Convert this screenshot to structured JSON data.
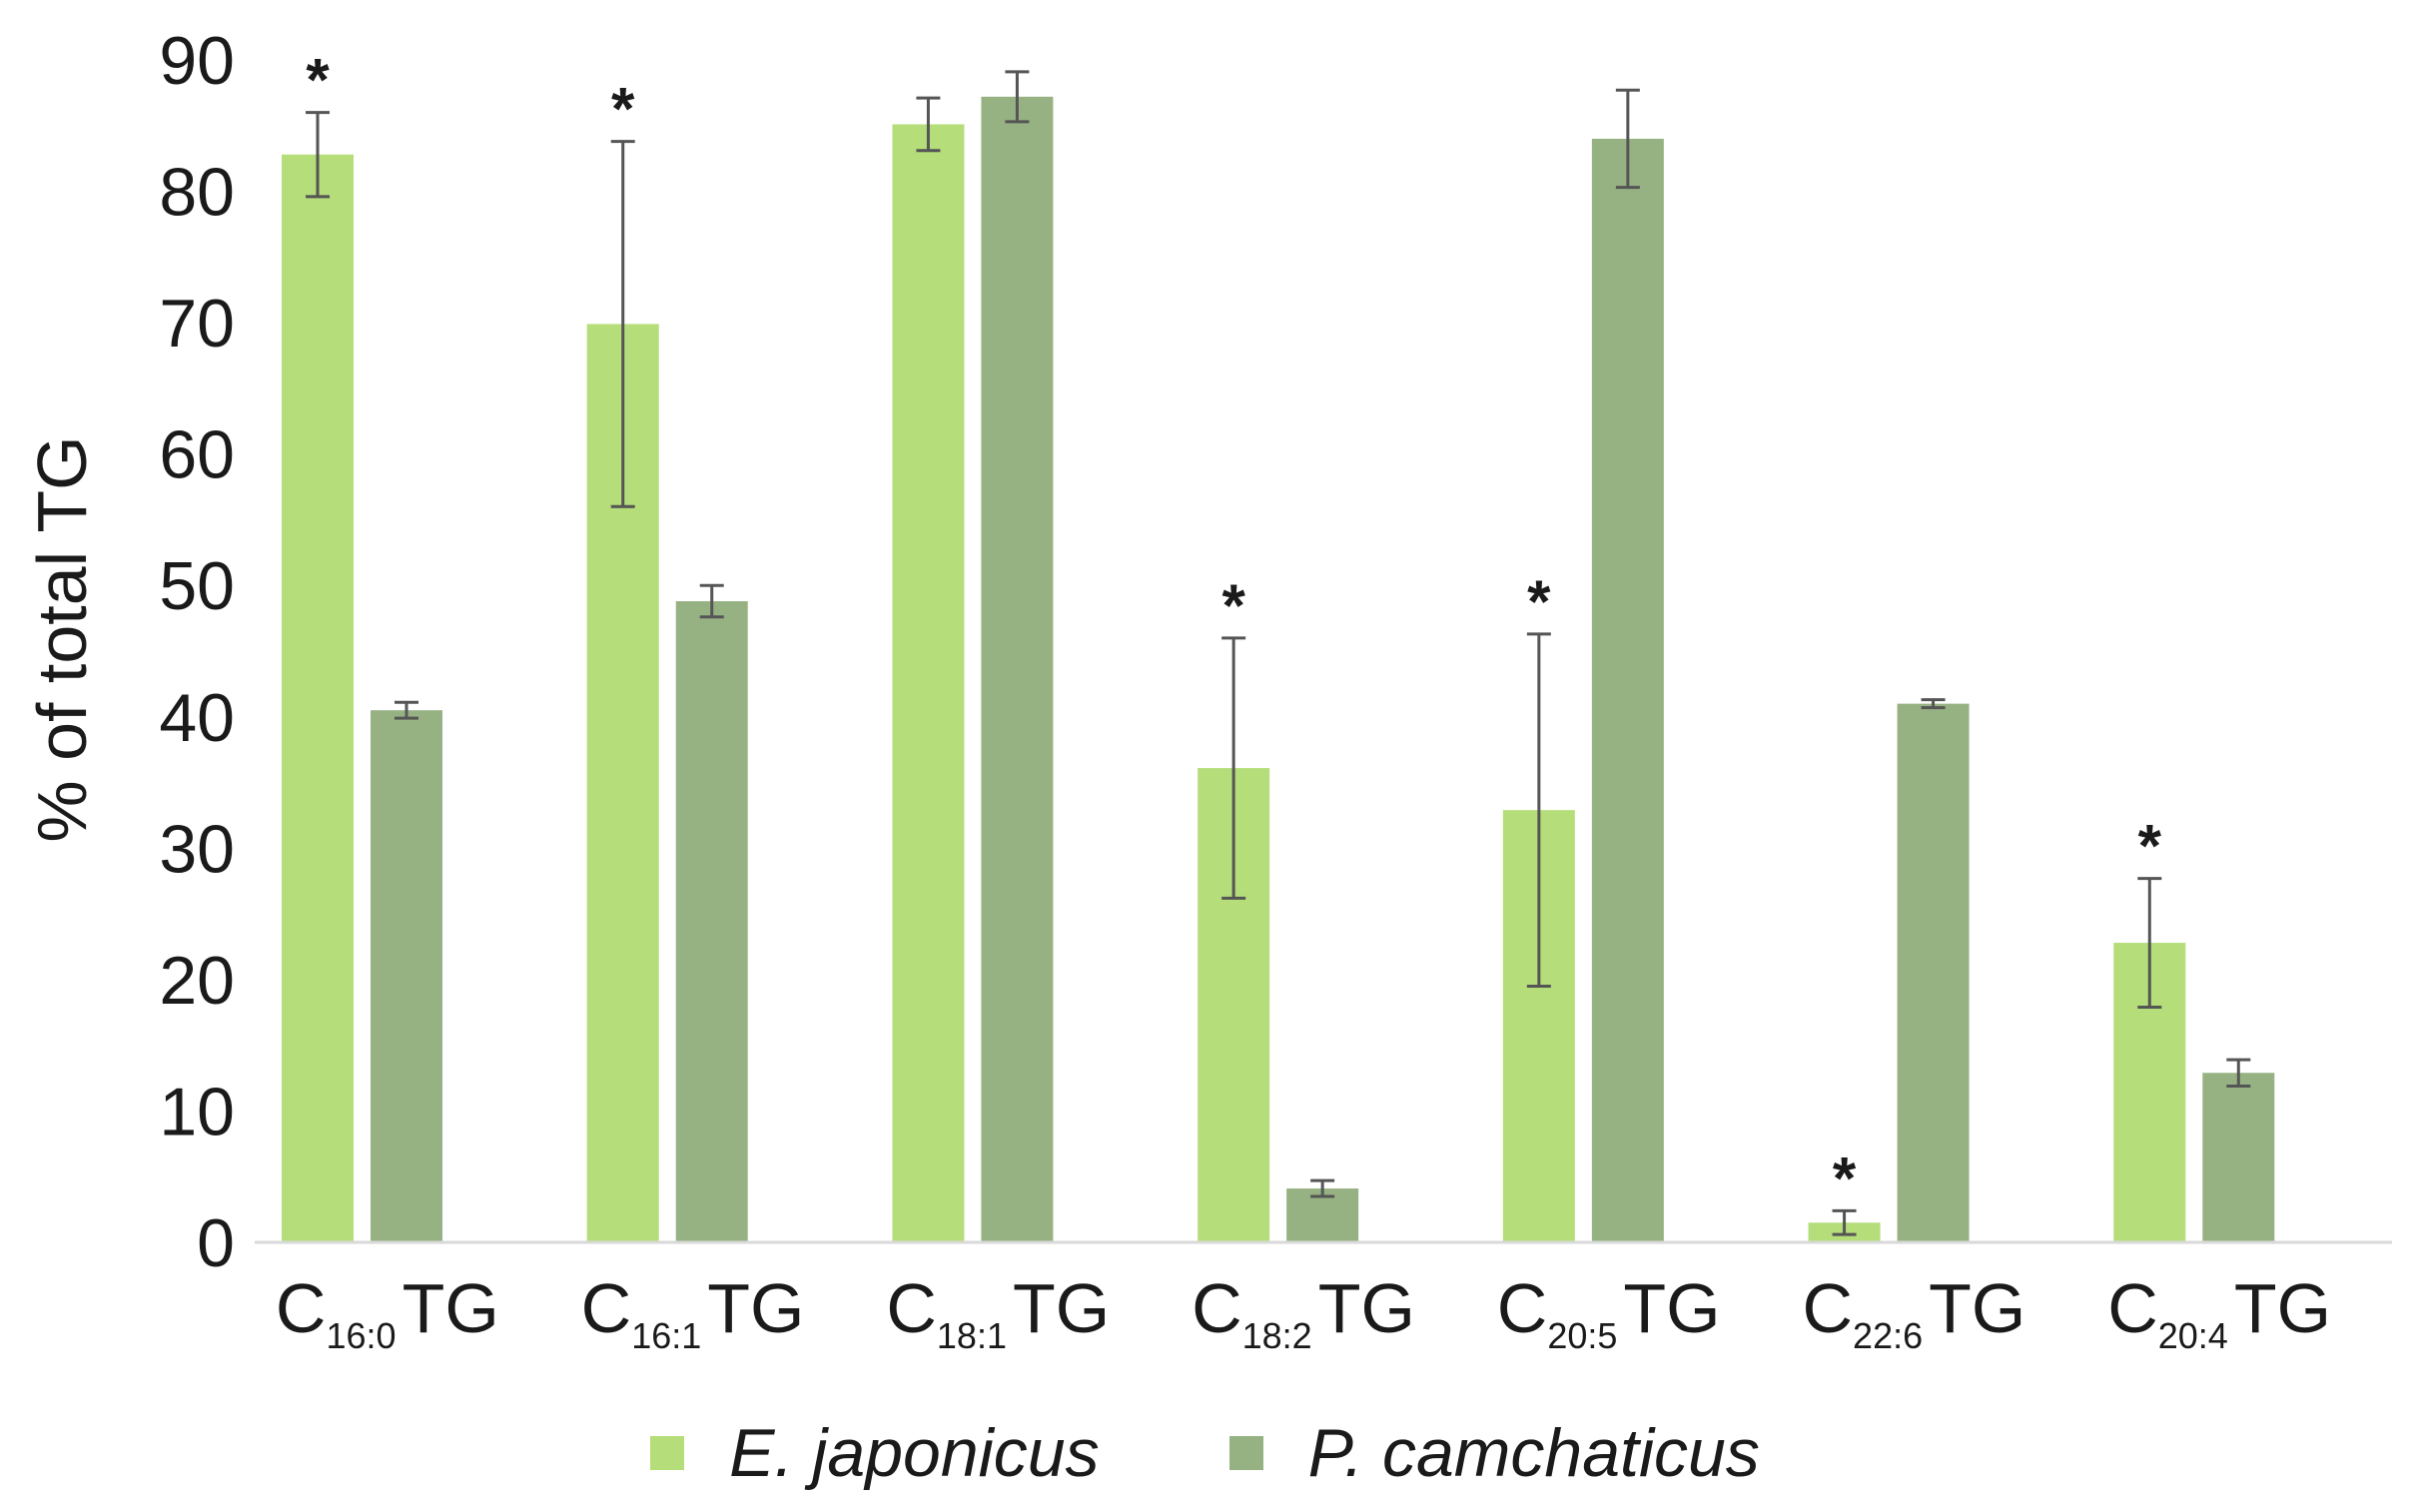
{
  "chart_data": {
    "type": "bar",
    "title": "",
    "xlabel": "",
    "ylabel": "% of total TG",
    "ylim": [
      0,
      90
    ],
    "yticks": [
      0,
      10,
      20,
      30,
      40,
      50,
      60,
      70,
      80,
      90
    ],
    "grid": false,
    "legend_position": "bottom-center",
    "categories": [
      {
        "base": "C",
        "sub": "16:0",
        "suffix": "TG"
      },
      {
        "base": "C",
        "sub": "16:1",
        "suffix": "TG"
      },
      {
        "base": "C",
        "sub": "18:1",
        "suffix": "TG"
      },
      {
        "base": "C",
        "sub": "18:2",
        "suffix": "TG"
      },
      {
        "base": "C",
        "sub": "20:5",
        "suffix": "TG"
      },
      {
        "base": "C",
        "sub": "22:6",
        "suffix": "TG"
      },
      {
        "base": "C",
        "sub": "20:4",
        "suffix": "TG"
      }
    ],
    "series": [
      {
        "name": "E. japonicus",
        "color": "#b5dd7a",
        "values": [
          82.8,
          69.9,
          85.1,
          36.1,
          32.9,
          1.5,
          22.8
        ],
        "errors": [
          3.2,
          13.9,
          2.0,
          9.9,
          13.4,
          0.9,
          4.9
        ],
        "significant": [
          true,
          true,
          false,
          true,
          true,
          true,
          true
        ]
      },
      {
        "name": "P. camchaticus",
        "color": "#96b283",
        "values": [
          40.5,
          48.8,
          87.2,
          4.1,
          84.0,
          41.0,
          12.9
        ],
        "errors": [
          0.6,
          1.2,
          1.9,
          0.6,
          3.7,
          0.3,
          1.0
        ],
        "significant": [
          false,
          false,
          false,
          false,
          false,
          false,
          false
        ]
      }
    ],
    "significance_marker": "*",
    "colors": {
      "axis": "#d9d9d9",
      "text": "#1a1a1a",
      "error_bar": "#555555"
    }
  }
}
